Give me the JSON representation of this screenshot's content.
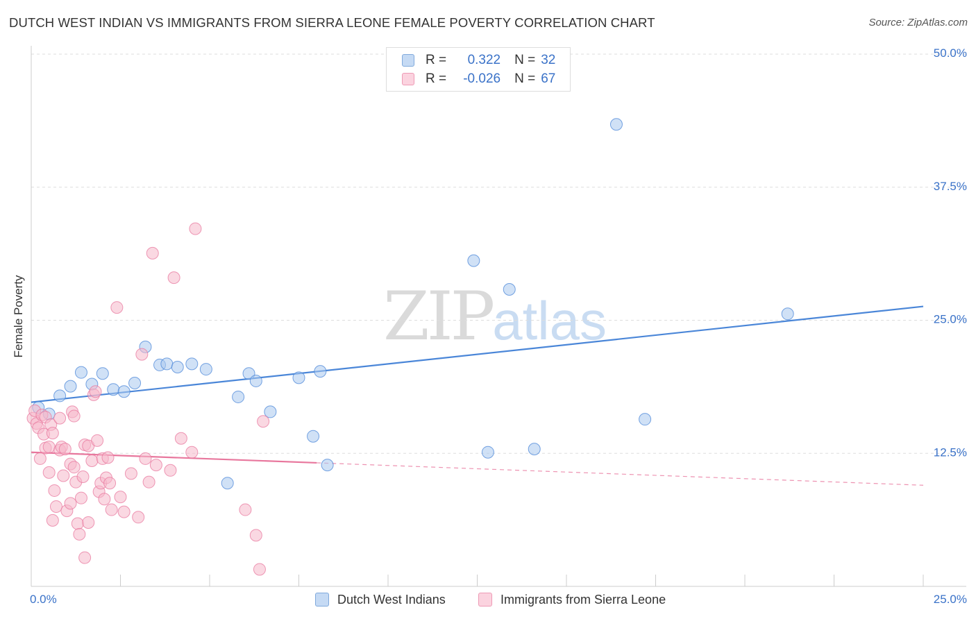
{
  "title": "DUTCH WEST INDIAN VS IMMIGRANTS FROM SIERRA LEONE FEMALE POVERTY CORRELATION CHART",
  "source": "Source: ZipAtlas.com",
  "watermark": {
    "zip": "ZIP",
    "atlas": "atlas"
  },
  "legend": {
    "r_label": "R =",
    "n_label": "N =",
    "rows": [
      {
        "r": "0.322",
        "n": "32",
        "color": "#a9c9ee"
      },
      {
        "r": "-0.026",
        "n": "67",
        "color": "#f6b8cb"
      }
    ]
  },
  "bottom_legend": [
    {
      "label": "Dutch West Indians",
      "color": "#a9c9ee"
    },
    {
      "label": "Immigrants from Sierra Leone",
      "color": "#f6b8cb"
    }
  ],
  "chart_data": {
    "type": "scatter",
    "title": "DUTCH WEST INDIAN VS IMMIGRANTS FROM SIERRA LEONE FEMALE POVERTY CORRELATION CHART",
    "xlabel": "",
    "ylabel": "Female Poverty",
    "xlim": [
      0,
      25
    ],
    "ylim": [
      0,
      50
    ],
    "x_tick_labels": [
      "0.0%",
      "25.0%"
    ],
    "y_ticks": [
      12.5,
      25.0,
      37.5,
      50.0
    ],
    "y_tick_labels": [
      "12.5%",
      "25.0%",
      "37.5%",
      "50.0%"
    ],
    "grid": true,
    "legend_position": "top-center",
    "series": [
      {
        "name": "Dutch West Indians",
        "color": "#4a86d8",
        "fill": "#a9c9ee",
        "r": 0.322,
        "n": 32,
        "trend": {
          "x": [
            0,
            25
          ],
          "y": [
            17.3,
            26.3
          ],
          "dashed_from": null
        },
        "points": [
          [
            0.2,
            16.8
          ],
          [
            0.5,
            16.2
          ],
          [
            0.8,
            17.9
          ],
          [
            1.1,
            18.8
          ],
          [
            1.4,
            20.1
          ],
          [
            1.7,
            19.0
          ],
          [
            2.0,
            20.0
          ],
          [
            2.3,
            18.5
          ],
          [
            2.6,
            18.3
          ],
          [
            2.9,
            19.1
          ],
          [
            3.2,
            22.5
          ],
          [
            3.6,
            20.8
          ],
          [
            3.8,
            20.9
          ],
          [
            4.1,
            20.6
          ],
          [
            4.5,
            20.9
          ],
          [
            4.9,
            20.4
          ],
          [
            5.5,
            9.7
          ],
          [
            5.8,
            17.8
          ],
          [
            6.1,
            20.0
          ],
          [
            6.3,
            19.3
          ],
          [
            6.7,
            16.4
          ],
          [
            7.5,
            19.6
          ],
          [
            7.9,
            14.1
          ],
          [
            8.1,
            20.2
          ],
          [
            8.3,
            11.4
          ],
          [
            12.4,
            30.6
          ],
          [
            12.8,
            12.6
          ],
          [
            13.4,
            27.9
          ],
          [
            14.1,
            12.9
          ],
          [
            16.4,
            43.4
          ],
          [
            17.2,
            15.7
          ],
          [
            21.2,
            25.6
          ]
        ]
      },
      {
        "name": "Immigrants from Sierra Leone",
        "color": "#e8779d",
        "fill": "#f6b8cb",
        "r": -0.026,
        "n": 67,
        "trend": {
          "x": [
            0,
            25
          ],
          "y": [
            12.6,
            9.5
          ],
          "dashed_from": 8.0
        },
        "points": [
          [
            0.05,
            15.8
          ],
          [
            0.1,
            16.5
          ],
          [
            0.15,
            15.3
          ],
          [
            0.2,
            14.9
          ],
          [
            0.25,
            12.0
          ],
          [
            0.3,
            16.1
          ],
          [
            0.35,
            14.3
          ],
          [
            0.4,
            15.9
          ],
          [
            0.4,
            13.0
          ],
          [
            0.5,
            10.7
          ],
          [
            0.5,
            13.1
          ],
          [
            0.55,
            15.2
          ],
          [
            0.6,
            14.4
          ],
          [
            0.6,
            6.2
          ],
          [
            0.65,
            9.0
          ],
          [
            0.7,
            7.5
          ],
          [
            0.8,
            15.8
          ],
          [
            0.8,
            12.8
          ],
          [
            0.85,
            13.1
          ],
          [
            0.9,
            10.4
          ],
          [
            0.95,
            12.9
          ],
          [
            1.0,
            7.1
          ],
          [
            1.1,
            11.5
          ],
          [
            1.1,
            7.8
          ],
          [
            1.15,
            16.4
          ],
          [
            1.2,
            16.0
          ],
          [
            1.2,
            11.2
          ],
          [
            1.25,
            9.8
          ],
          [
            1.3,
            5.9
          ],
          [
            1.35,
            4.9
          ],
          [
            1.4,
            8.3
          ],
          [
            1.45,
            10.3
          ],
          [
            1.5,
            2.7
          ],
          [
            1.5,
            13.3
          ],
          [
            1.6,
            13.2
          ],
          [
            1.6,
            6.0
          ],
          [
            1.7,
            11.8
          ],
          [
            1.75,
            18.0
          ],
          [
            1.8,
            18.3
          ],
          [
            1.85,
            13.7
          ],
          [
            1.9,
            8.9
          ],
          [
            1.95,
            9.7
          ],
          [
            2.0,
            12.0
          ],
          [
            2.05,
            8.2
          ],
          [
            2.1,
            10.2
          ],
          [
            2.15,
            12.1
          ],
          [
            2.2,
            9.7
          ],
          [
            2.25,
            7.2
          ],
          [
            2.4,
            26.2
          ],
          [
            2.5,
            8.4
          ],
          [
            2.6,
            7.0
          ],
          [
            2.8,
            10.6
          ],
          [
            3.0,
            6.5
          ],
          [
            3.1,
            21.8
          ],
          [
            3.2,
            12.0
          ],
          [
            3.3,
            9.8
          ],
          [
            3.4,
            31.3
          ],
          [
            3.5,
            11.4
          ],
          [
            3.9,
            10.9
          ],
          [
            4.0,
            29.0
          ],
          [
            4.2,
            13.9
          ],
          [
            4.5,
            12.6
          ],
          [
            4.6,
            33.6
          ],
          [
            6.0,
            7.2
          ],
          [
            6.3,
            4.8
          ],
          [
            6.4,
            1.6
          ],
          [
            6.5,
            15.5
          ]
        ]
      }
    ]
  }
}
